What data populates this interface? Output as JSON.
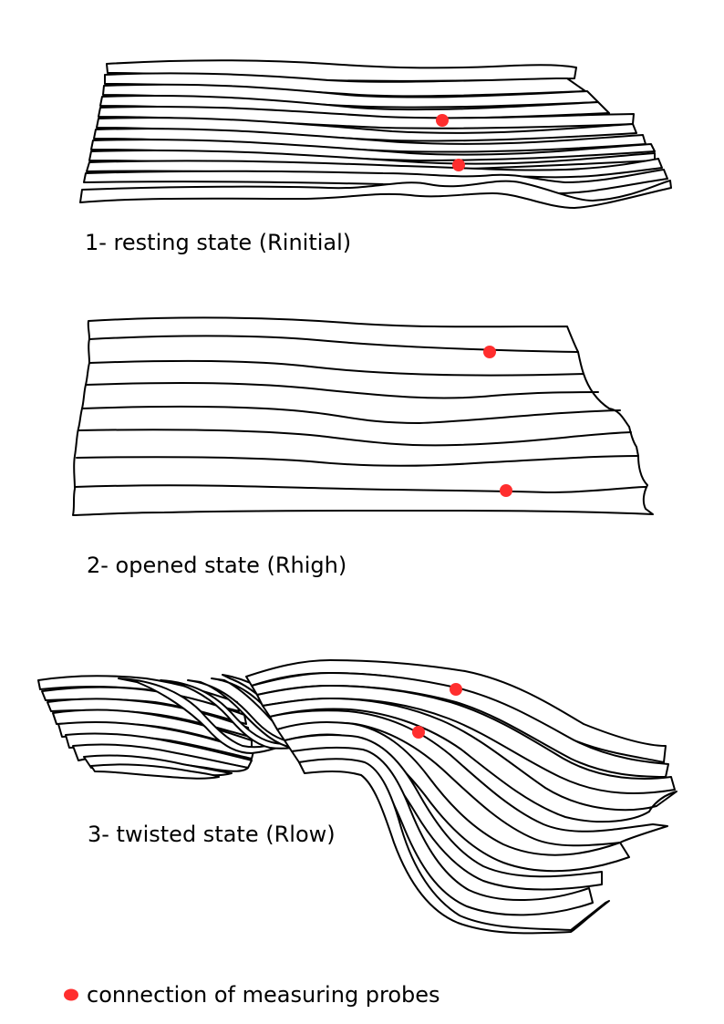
{
  "colors": {
    "line": "#000000",
    "probe": "#ff2e2e",
    "background": "#ffffff"
  },
  "states": [
    {
      "label": "1- resting state (Rinitial)",
      "probe_count": 2
    },
    {
      "label": "2- opened state (Rhigh)",
      "probe_count": 2
    },
    {
      "label": "3- twisted state (Rlow)",
      "probe_count": 2
    }
  ],
  "legend": {
    "marker": "red-dot",
    "text": "connection of measuring probes"
  }
}
